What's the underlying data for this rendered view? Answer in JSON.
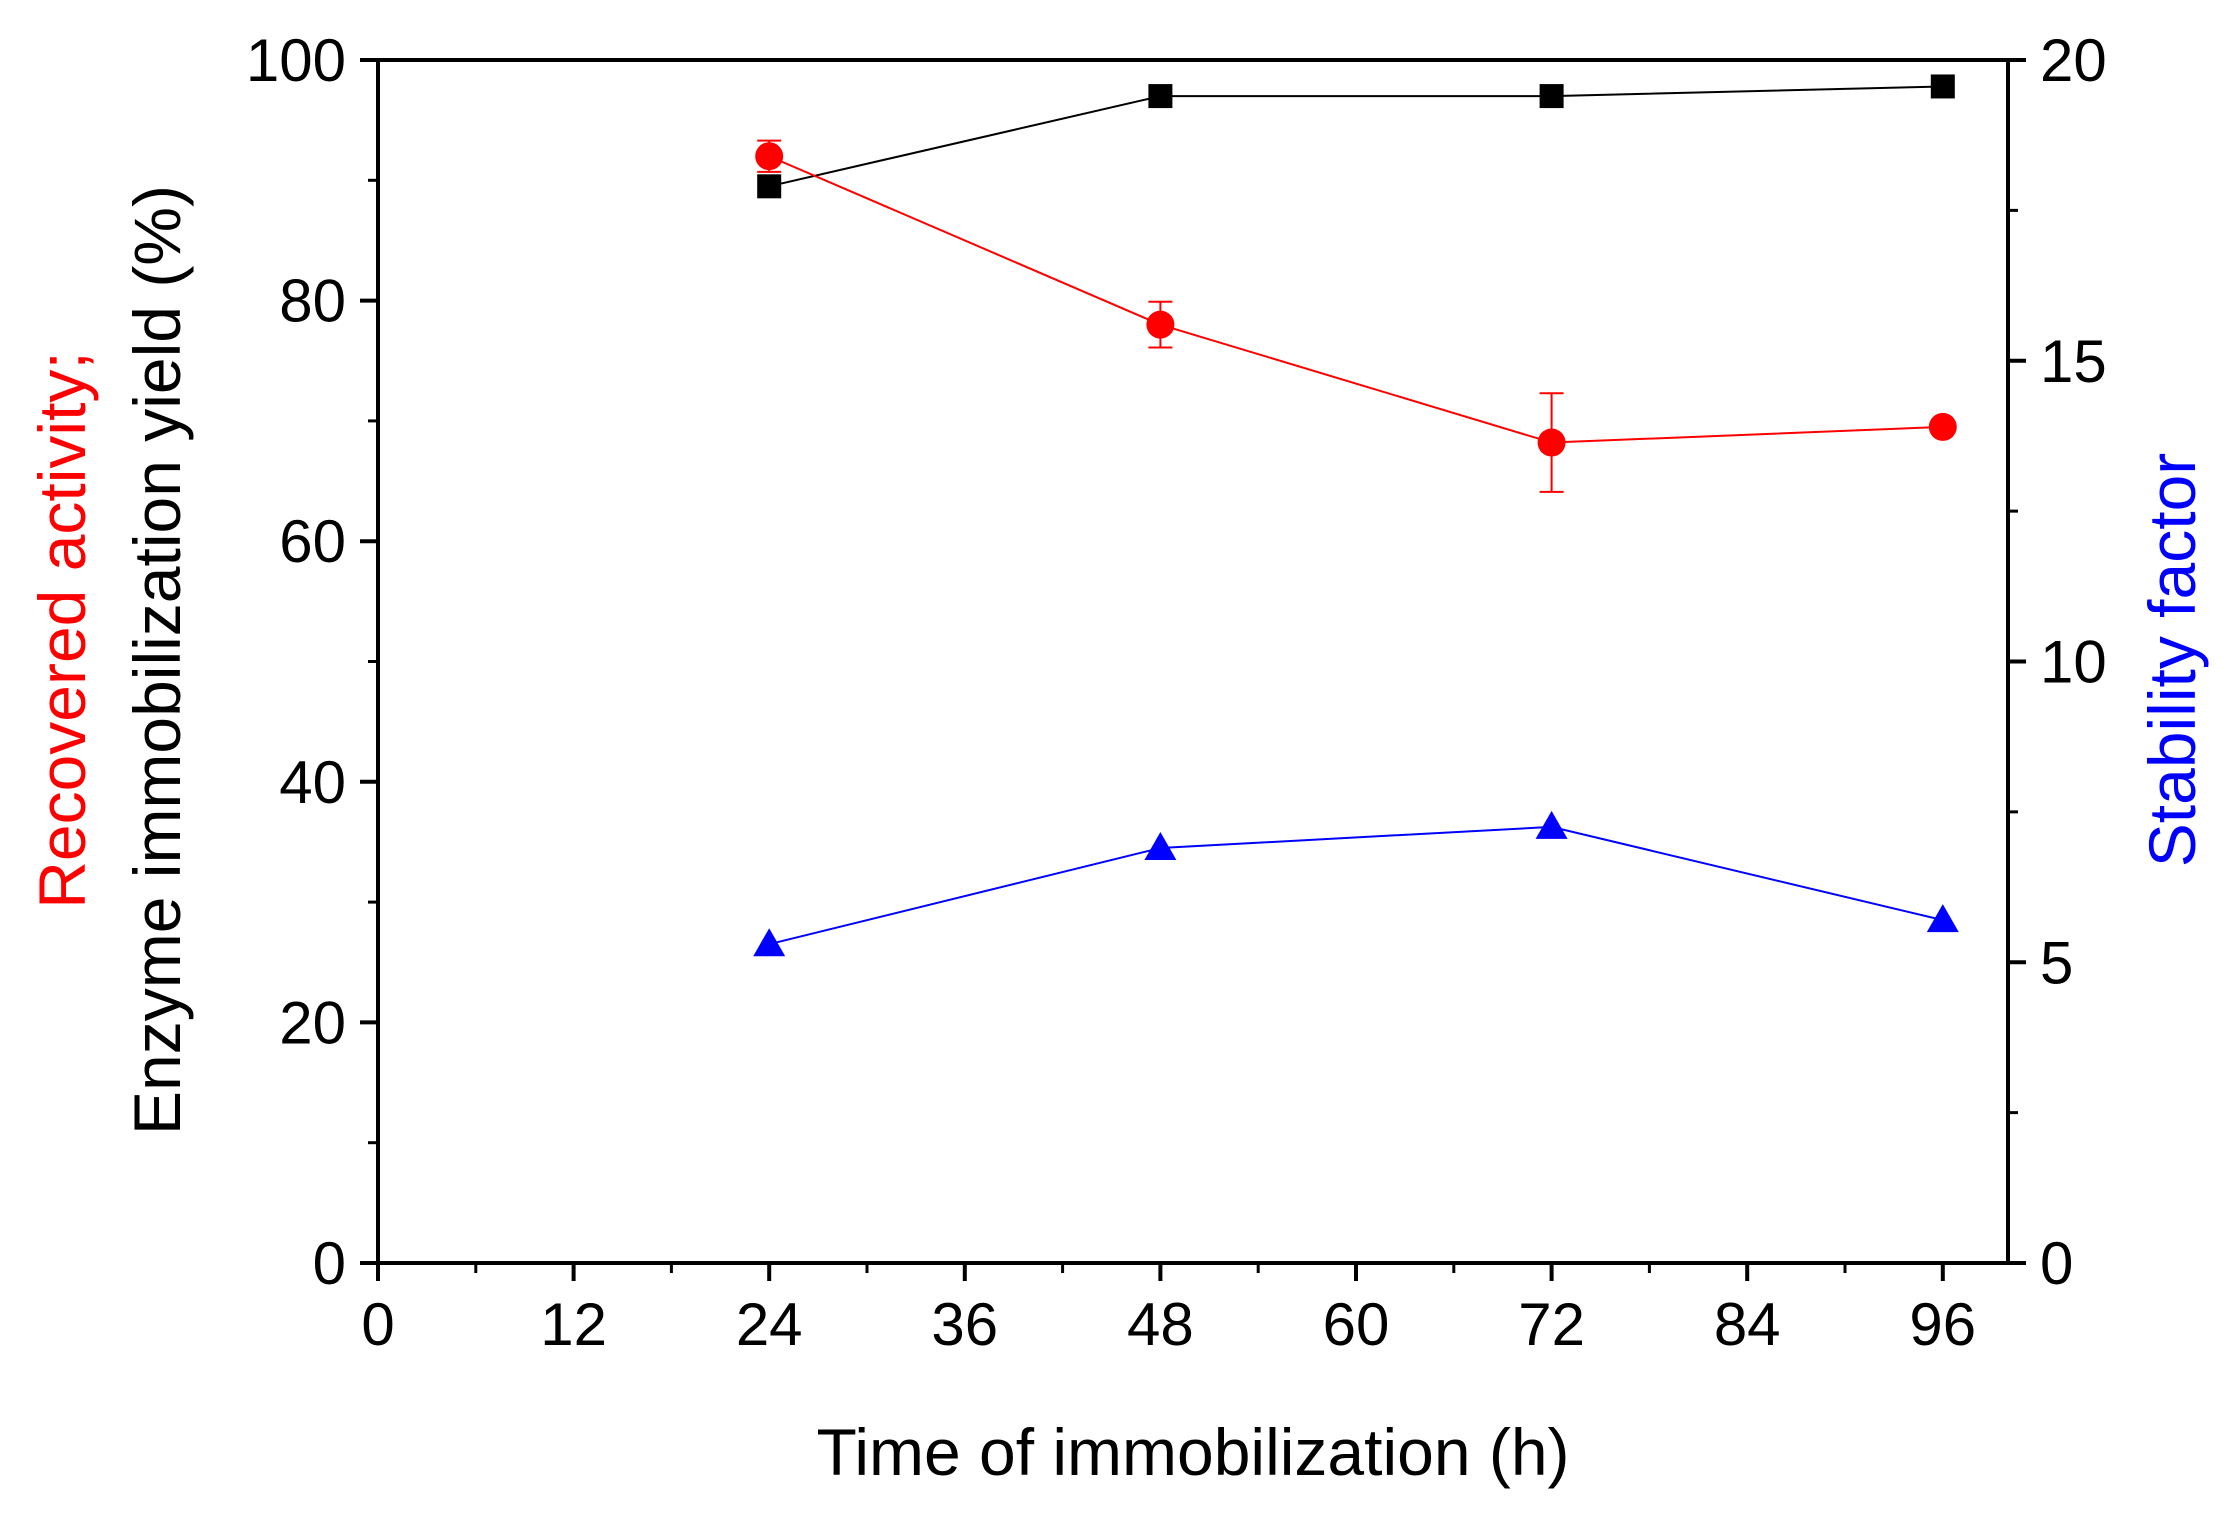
{
  "chart_data": {
    "type": "line",
    "xlabel": "Time of immobilization (h)",
    "ylabel_left": {
      "part1": "Recovered activity;",
      "part2": "Enzyme immobilization yield (%)"
    },
    "ylabel_right": "Stability factor",
    "xlim": [
      0,
      100
    ],
    "ylim_left": [
      0,
      100
    ],
    "ylim_right": [
      0,
      20
    ],
    "x_ticks": [
      0,
      12,
      24,
      36,
      48,
      60,
      72,
      84,
      96
    ],
    "y_ticks_left": [
      0,
      20,
      40,
      60,
      80,
      100
    ],
    "y_ticks_right": [
      0,
      5,
      10,
      15,
      20
    ],
    "grid": false,
    "legend": "none",
    "series": [
      {
        "axis": "left",
        "marker": "square",
        "color": "#000000",
        "x": [
          24,
          48,
          72,
          96
        ],
        "values": [
          89.5,
          97.0,
          97.0,
          97.8
        ],
        "errors": [
          0,
          0,
          0,
          0
        ]
      },
      {
        "axis": "left",
        "marker": "circle",
        "color": "#ff0000",
        "x": [
          24,
          48,
          72,
          96
        ],
        "values": [
          92.0,
          78.0,
          68.2,
          69.5
        ],
        "errors": [
          1.3,
          1.9,
          4.1,
          0
        ]
      },
      {
        "axis": "right",
        "marker": "triangle",
        "color": "#0000ff",
        "x": [
          24,
          48,
          72,
          96
        ],
        "values": [
          5.3,
          6.9,
          7.25,
          5.7
        ],
        "errors": [
          0,
          0,
          0,
          0
        ]
      }
    ]
  }
}
